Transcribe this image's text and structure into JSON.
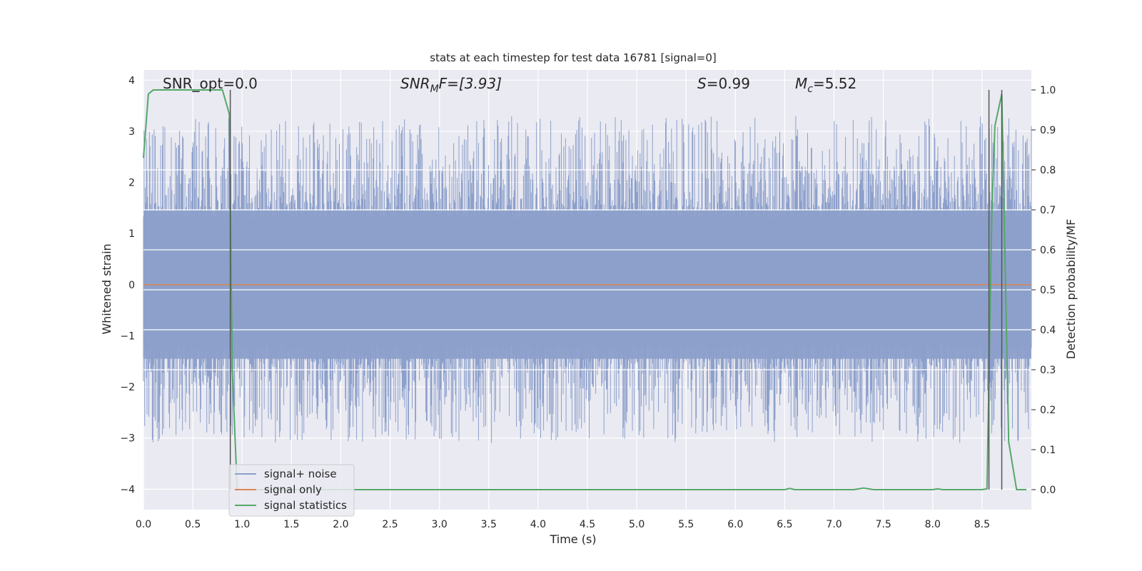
{
  "chart_data": {
    "type": "line",
    "title": "stats at each timestep for test data 16781 [signal=0]",
    "xlabel": "Time (s)",
    "ylabel": "Whitened strain",
    "y2label": "Detection probability/MF",
    "xlim": [
      0.0,
      9.0
    ],
    "ylim": [
      -4.4,
      4.2
    ],
    "y2lim": [
      -0.05,
      1.05
    ],
    "xticks": [
      "0.0",
      "0.5",
      "1.0",
      "1.5",
      "2.0",
      "2.5",
      "3.0",
      "3.5",
      "4.0",
      "4.5",
      "5.0",
      "5.5",
      "6.0",
      "6.5",
      "7.0",
      "7.5",
      "8.0",
      "8.5"
    ],
    "yticks": [
      "−4",
      "−3",
      "−2",
      "−1",
      "0",
      "1",
      "2",
      "3",
      "4"
    ],
    "y2ticks": [
      "0.0",
      "0.1",
      "0.2",
      "0.3",
      "0.4",
      "0.5",
      "0.6",
      "0.7",
      "0.8",
      "0.9",
      "1.0"
    ],
    "grid": true,
    "legend_position": "bottom-left",
    "colors": {
      "background": "#eaeaf2",
      "grid": "#ffffff",
      "signal_noise": "#8da0cb",
      "signal_only": "#dd8452",
      "signal_statistics": "#55a868",
      "vlines": "#555555"
    },
    "annotations": {
      "snr_opt": "SNR_opt=0.0",
      "snr_mf_main": "SNR",
      "snr_mf_sub": "M",
      "snr_mf_rest": "F=[3.93]",
      "s_main": "S",
      "s_rest": "=0.99",
      "mc_main": "M",
      "mc_sub": "c",
      "mc_rest": "=5.52"
    },
    "series": [
      {
        "name": "signal+ noise",
        "description_values": "noise envelope",
        "x": [
          0.0,
          9.0
        ],
        "y": [
          -1.5,
          1.5
        ]
      },
      {
        "name": "signal only",
        "x": [
          0.0,
          9.0
        ],
        "y": [
          0.0,
          0.0
        ]
      },
      {
        "name": "signal statistics",
        "x": [
          0.0,
          0.05,
          0.1,
          0.2,
          0.3,
          0.4,
          0.5,
          0.6,
          0.7,
          0.8,
          0.87,
          0.9,
          0.95,
          1.0,
          1.5,
          2.0,
          2.5,
          3.0,
          3.5,
          4.0,
          4.5,
          5.0,
          5.5,
          6.0,
          6.5,
          6.55,
          6.6,
          6.7,
          7.0,
          7.2,
          7.3,
          7.4,
          7.5,
          8.0,
          8.05,
          8.1,
          8.2,
          8.5,
          8.55,
          8.6,
          8.63,
          8.7,
          8.77,
          8.85,
          8.9,
          8.95
        ],
        "y": [
          0.83,
          0.99,
          1.0,
          1.0,
          1.0,
          1.0,
          1.0,
          1.0,
          1.0,
          1.0,
          0.94,
          0.3,
          0.0,
          0.0,
          0.0,
          0.0,
          0.0,
          0.0,
          0.0,
          0.0,
          0.0,
          0.0,
          0.0,
          0.0,
          0.0,
          0.003,
          0.0,
          0.0,
          0.0,
          0.0,
          0.004,
          0.0,
          0.0,
          0.0,
          0.002,
          0.0,
          0.0,
          0.0,
          0.002,
          0.7,
          0.91,
          0.99,
          0.12,
          0.0,
          0.0,
          0.0
        ]
      }
    ],
    "vlines": [
      0.88,
      8.57,
      8.7
    ]
  },
  "legend": {
    "items": [
      "signal+ noise",
      "signal only",
      "signal statistics"
    ]
  }
}
